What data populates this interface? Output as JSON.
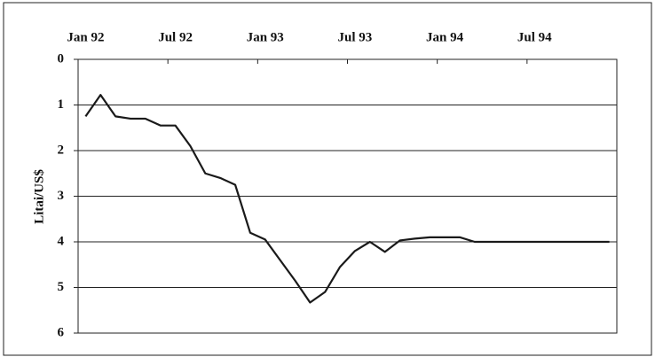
{
  "chart_data": {
    "type": "line",
    "y_label": "Litai/US$",
    "x": [
      "1992-01",
      "1992-02",
      "1992-03",
      "1992-04",
      "1992-05",
      "1992-06",
      "1992-07",
      "1992-08",
      "1992-09",
      "1992-10",
      "1992-11",
      "1992-12",
      "1993-01",
      "1993-02",
      "1993-03",
      "1993-04",
      "1993-05",
      "1993-06",
      "1993-07",
      "1993-08",
      "1993-09",
      "1993-10",
      "1993-11",
      "1993-12",
      "1994-01",
      "1994-02",
      "1994-03",
      "1994-04",
      "1994-05",
      "1994-06",
      "1994-07",
      "1994-08",
      "1994-09",
      "1994-10",
      "1994-11",
      "1994-12"
    ],
    "series": [
      {
        "color": "#1a1a1a",
        "values": [
          1.25,
          0.78,
          1.25,
          1.3,
          1.3,
          1.45,
          1.45,
          1.9,
          2.5,
          2.6,
          2.75,
          3.8,
          3.95,
          4.4,
          4.85,
          5.33,
          5.1,
          4.55,
          4.2,
          4.0,
          4.22,
          3.97,
          3.93,
          3.9,
          3.9,
          3.9,
          4.0,
          4.0,
          4.0,
          4.0,
          4.0,
          4.0,
          4.0,
          4.0,
          4.0,
          4.0
        ]
      }
    ],
    "xticks": [
      {
        "value": "1992-01",
        "label": "Jan 92"
      },
      {
        "value": "1992-07",
        "label": "Jul 92"
      },
      {
        "value": "1993-01",
        "label": "Jan 93"
      },
      {
        "value": "1993-07",
        "label": "Jul 93"
      },
      {
        "value": "1994-01",
        "label": "Jan 94"
      },
      {
        "value": "1994-07",
        "label": "Jul 94"
      }
    ],
    "ylim": [
      0,
      6
    ],
    "yticks": [
      0,
      1,
      2,
      3,
      4,
      5,
      6
    ],
    "y_inverted": true,
    "x_axis_position": "top",
    "grid": true
  }
}
